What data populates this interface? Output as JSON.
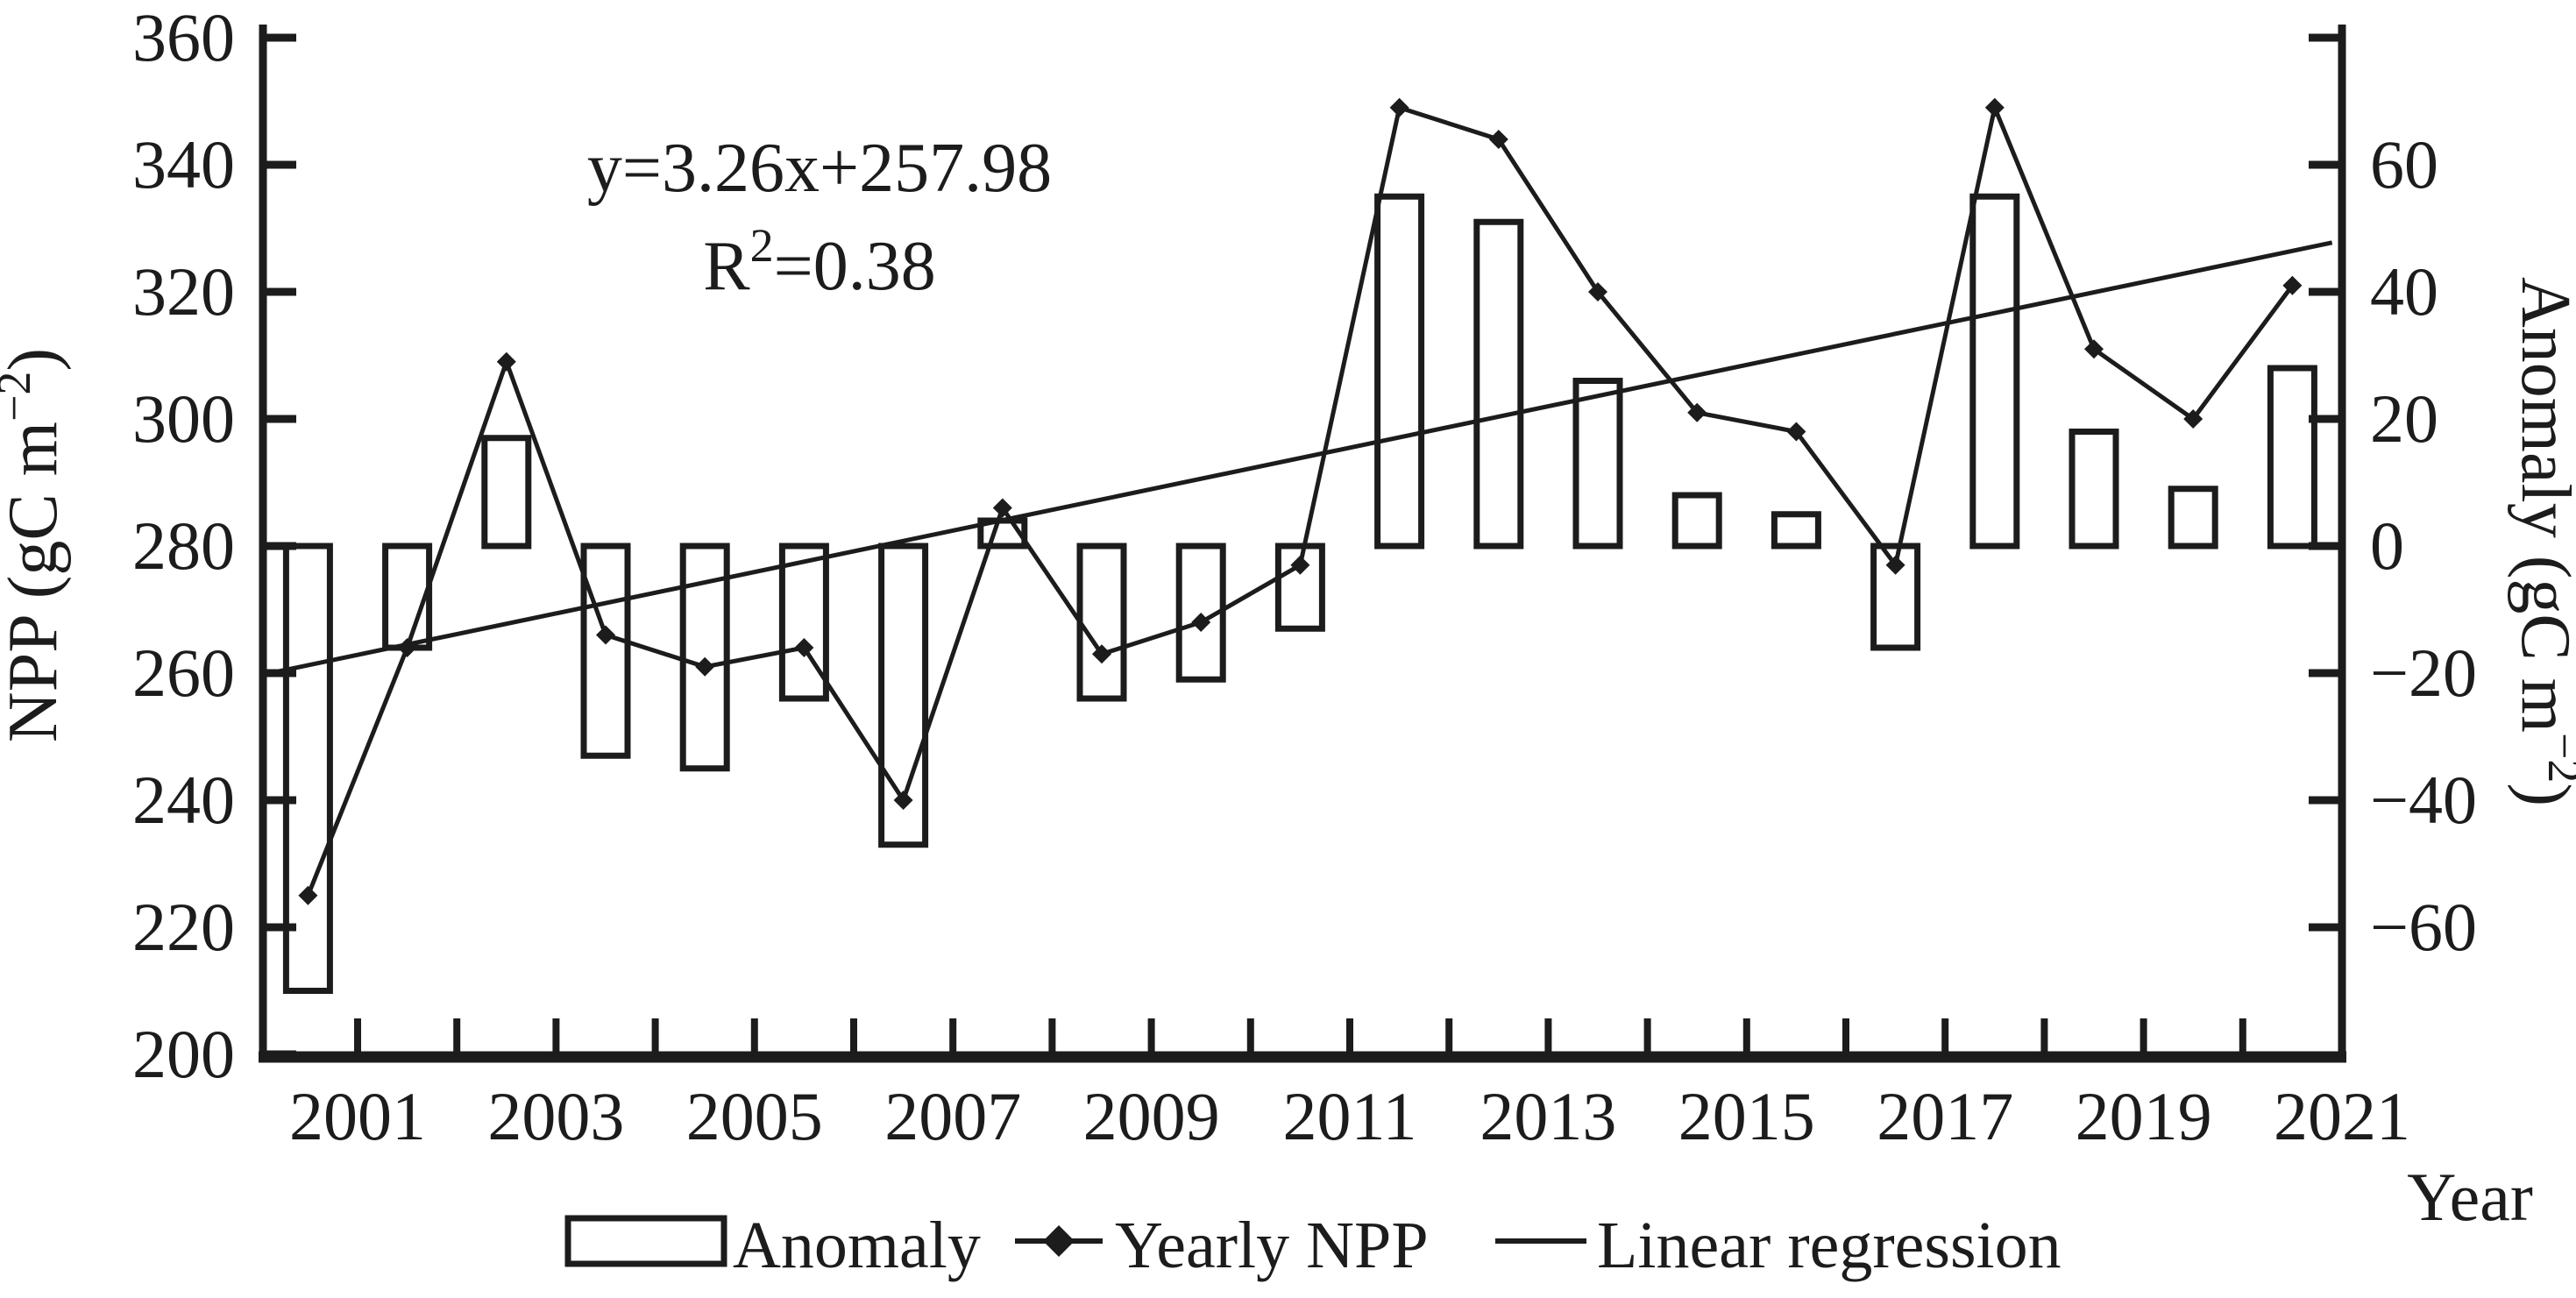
{
  "figure": {
    "background": "#ffffff",
    "ink_color": "#1c1c1c",
    "annotation": {
      "equation": "y=3.26x+257.98",
      "r2_base": "R",
      "r2_sup": "2",
      "r2_rest": "=0.38"
    },
    "left_axis": {
      "label_prefix": "NPP (gC m",
      "label_sup": "−2",
      "label_suffix": ")",
      "tick_labels": [
        "360",
        "340",
        "320",
        "300",
        "280",
        "260",
        "240",
        "220",
        "200"
      ],
      "tick_values": [
        360,
        340,
        320,
        300,
        280,
        260,
        240,
        220,
        200
      ]
    },
    "right_axis": {
      "label_prefix": "Anomaly (gC m",
      "label_sup": "−2",
      "label_suffix": ")",
      "tick_labels": [
        "60",
        "40",
        "20",
        "0",
        "−20",
        "−40",
        "−60"
      ],
      "tick_values": [
        60,
        40,
        20,
        0,
        -20,
        -40,
        -60
      ]
    },
    "x_axis": {
      "label": "Year",
      "label_years": [
        "2001",
        "2003",
        "2005",
        "2007",
        "2009",
        "2011",
        "2013",
        "2015",
        "2017",
        "2019",
        "2021"
      ],
      "tick_years": [
        2001,
        2002,
        2003,
        2004,
        2005,
        2006,
        2007,
        2008,
        2009,
        2010,
        2011,
        2012,
        2013,
        2014,
        2015,
        2016,
        2017,
        2018,
        2019,
        2020,
        2021
      ]
    },
    "legend": [
      {
        "label": "Anomaly",
        "swatch": "open-bar"
      },
      {
        "label": "Yearly NPP",
        "swatch": "line-with-diamond"
      },
      {
        "label": "Linear regression",
        "swatch": "line"
      }
    ]
  },
  "chart_data": {
    "type": "bar+line",
    "title": "",
    "xlabel": "Year",
    "ylabel_left": "NPP (gC m-2)",
    "ylabel_right": "Anomaly (gC m-2)",
    "x": [
      2000,
      2001,
      2002,
      2003,
      2004,
      2005,
      2006,
      2007,
      2008,
      2009,
      2010,
      2011,
      2012,
      2013,
      2014,
      2015,
      2016,
      2017,
      2018,
      2019,
      2020
    ],
    "series": [
      {
        "name": "Anomaly",
        "type": "bar",
        "axis": "right",
        "values": [
          -70,
          -16,
          17,
          -33,
          -35,
          -24,
          -47,
          4,
          -24,
          -21,
          -13,
          55,
          51,
          26,
          8,
          5,
          -16,
          55,
          18,
          9,
          28
        ]
      },
      {
        "name": "Yearly NPP",
        "type": "line",
        "axis": "left",
        "values": [
          225,
          264,
          309,
          266,
          261,
          264,
          240,
          286,
          263,
          268,
          277,
          349,
          344,
          320,
          301,
          298,
          277,
          349,
          311,
          300,
          321
        ]
      },
      {
        "name": "Linear regression",
        "type": "trend",
        "axis": "left",
        "slope_per_year": 3.26,
        "value_at_2000": 261.24,
        "equation": "y=3.26x+257.98",
        "r_squared": 0.38,
        "draw_from_year": 1999.58,
        "draw_to_year": 2020.4
      }
    ],
    "left_ylim": [
      200,
      360
    ],
    "right_ylim": [
      -80,
      80
    ],
    "grid": false,
    "legend_position": "bottom"
  }
}
